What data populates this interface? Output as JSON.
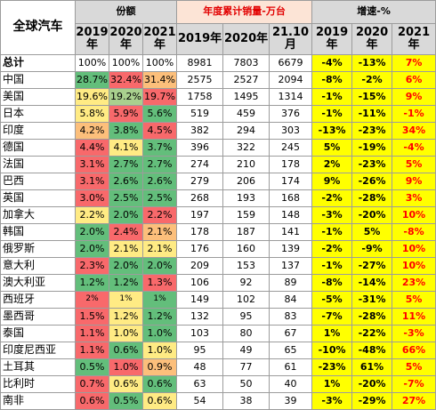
{
  "corner": "全球汽车",
  "groups": {
    "share": "份额",
    "sales": "年度累计销量-万台",
    "growth": "增速-%"
  },
  "subheaders": {
    "share": [
      "2019\n年",
      "2020\n年",
      "2021\n年"
    ],
    "sales": [
      "2019年",
      "2020年",
      "21.10\n月"
    ],
    "growth": [
      "2019\n年",
      "2020\n年",
      "2021\n年"
    ]
  },
  "rows": [
    {
      "name": "总计",
      "share": [
        "100%",
        "100%",
        "100%"
      ],
      "sales": [
        "8981",
        "7803",
        "6679"
      ],
      "growth": [
        "-4%",
        "-13%",
        "7%"
      ],
      "shareClass": [
        "p100",
        "p100",
        "p100"
      ]
    },
    {
      "name": "中国",
      "share": [
        "28.7%",
        "32.4%",
        "31.4%"
      ],
      "sales": [
        "2575",
        "2527",
        "2094"
      ],
      "growth": [
        "-8%",
        "-2%",
        "6%"
      ],
      "shareClass": [
        "green",
        "red",
        "orange"
      ]
    },
    {
      "name": "美国",
      "share": [
        "19.6%",
        "19.2%",
        "19.7%"
      ],
      "sales": [
        "1758",
        "1495",
        "1314"
      ],
      "growth": [
        "-1%",
        "-15%",
        "9%"
      ],
      "shareClass": [
        "yellow",
        "lgreen",
        "red"
      ]
    },
    {
      "name": "日本",
      "share": [
        "5.8%",
        "5.9%",
        "5.6%"
      ],
      "sales": [
        "519",
        "459",
        "376"
      ],
      "growth": [
        "-1%",
        "-11%",
        "-1%"
      ],
      "shareClass": [
        "yellow",
        "red",
        "green"
      ]
    },
    {
      "name": "印度",
      "share": [
        "4.2%",
        "3.8%",
        "4.5%"
      ],
      "sales": [
        "382",
        "294",
        "303"
      ],
      "growth": [
        "-13%",
        "-23%",
        "34%"
      ],
      "shareClass": [
        "orange",
        "green",
        "red"
      ]
    },
    {
      "name": "德国",
      "share": [
        "4.4%",
        "4.1%",
        "3.7%"
      ],
      "sales": [
        "396",
        "322",
        "245"
      ],
      "growth": [
        "5%",
        "-19%",
        "-4%"
      ],
      "shareClass": [
        "red",
        "yellow",
        "green"
      ]
    },
    {
      "name": "法国",
      "share": [
        "3.1%",
        "2.7%",
        "2.7%"
      ],
      "sales": [
        "274",
        "210",
        "178"
      ],
      "growth": [
        "2%",
        "-23%",
        "5%"
      ],
      "shareClass": [
        "red",
        "green",
        "green"
      ]
    },
    {
      "name": "巴西",
      "share": [
        "3.1%",
        "2.6%",
        "2.6%"
      ],
      "sales": [
        "279",
        "206",
        "174"
      ],
      "growth": [
        "9%",
        "-26%",
        "9%"
      ],
      "shareClass": [
        "red",
        "green",
        "green"
      ]
    },
    {
      "name": "英国",
      "share": [
        "3.0%",
        "2.5%",
        "2.5%"
      ],
      "sales": [
        "268",
        "193",
        "168"
      ],
      "growth": [
        "-2%",
        "-28%",
        "3%"
      ],
      "shareClass": [
        "red",
        "green",
        "green"
      ]
    },
    {
      "name": "加拿大",
      "share": [
        "2.2%",
        "2.0%",
        "2.2%"
      ],
      "sales": [
        "197",
        "159",
        "148"
      ],
      "growth": [
        "-3%",
        "-20%",
        "10%"
      ],
      "shareClass": [
        "yellow",
        "green",
        "red"
      ]
    },
    {
      "name": "韩国",
      "share": [
        "2.0%",
        "2.4%",
        "2.1%"
      ],
      "sales": [
        "178",
        "187",
        "141"
      ],
      "growth": [
        "-1%",
        "5%",
        "-8%"
      ],
      "shareClass": [
        "green",
        "red",
        "orange"
      ]
    },
    {
      "name": "俄罗斯",
      "share": [
        "2.0%",
        "2.1%",
        "2.1%"
      ],
      "sales": [
        "176",
        "160",
        "139"
      ],
      "growth": [
        "-2%",
        "-9%",
        "10%"
      ],
      "shareClass": [
        "green",
        "yellow",
        "yellow"
      ]
    },
    {
      "name": "意大利",
      "share": [
        "2.3%",
        "2.0%",
        "2.0%"
      ],
      "sales": [
        "209",
        "153",
        "137"
      ],
      "growth": [
        "-1%",
        "-27%",
        "10%"
      ],
      "shareClass": [
        "red",
        "green",
        "green"
      ]
    },
    {
      "name": "澳大利亚",
      "share": [
        "1.2%",
        "1.2%",
        "1.3%"
      ],
      "sales": [
        "106",
        "92",
        "89"
      ],
      "growth": [
        "-8%",
        "-14%",
        "23%"
      ],
      "shareClass": [
        "green",
        "green",
        "red"
      ]
    },
    {
      "name": "西班牙",
      "share": [
        "2%",
        "1%",
        "1%"
      ],
      "sales": [
        "149",
        "102",
        "84"
      ],
      "growth": [
        "-5%",
        "-31%",
        "5%"
      ],
      "shareClass": [
        "red",
        "yellow",
        "green"
      ]
    },
    {
      "name": "墨西哥",
      "share": [
        "1.5%",
        "1.2%",
        "1.2%"
      ],
      "sales": [
        "132",
        "95",
        "83"
      ],
      "growth": [
        "-7%",
        "-28%",
        "11%"
      ],
      "shareClass": [
        "red",
        "yellow",
        "green"
      ]
    },
    {
      "name": "泰国",
      "share": [
        "1.1%",
        "1.0%",
        "1.0%"
      ],
      "sales": [
        "103",
        "80",
        "67"
      ],
      "growth": [
        "1%",
        "-22%",
        "-3%"
      ],
      "shareClass": [
        "red",
        "yellow",
        "green"
      ]
    },
    {
      "name": "印度尼西亚",
      "share": [
        "1.1%",
        "0.6%",
        "1.0%"
      ],
      "sales": [
        "95",
        "49",
        "65"
      ],
      "growth": [
        "-10%",
        "-48%",
        "66%"
      ],
      "shareClass": [
        "red",
        "green",
        "yellow"
      ]
    },
    {
      "name": "土耳其",
      "share": [
        "0.5%",
        "1.0%",
        "0.9%"
      ],
      "sales": [
        "48",
        "77",
        "61"
      ],
      "growth": [
        "-23%",
        "61%",
        "5%"
      ],
      "shareClass": [
        "green",
        "red",
        "orange"
      ]
    },
    {
      "name": "比利时",
      "share": [
        "0.7%",
        "0.6%",
        "0.6%"
      ],
      "sales": [
        "63",
        "50",
        "40"
      ],
      "growth": [
        "1%",
        "-20%",
        "-7%"
      ],
      "shareClass": [
        "red",
        "yellow",
        "green"
      ]
    },
    {
      "name": "南非",
      "share": [
        "0.6%",
        "0.5%",
        "0.6%"
      ],
      "sales": [
        "54",
        "38",
        "39"
      ],
      "growth": [
        "-3%",
        "-29%",
        "27%"
      ],
      "shareClass": [
        "red",
        "green",
        "yellow"
      ]
    }
  ]
}
